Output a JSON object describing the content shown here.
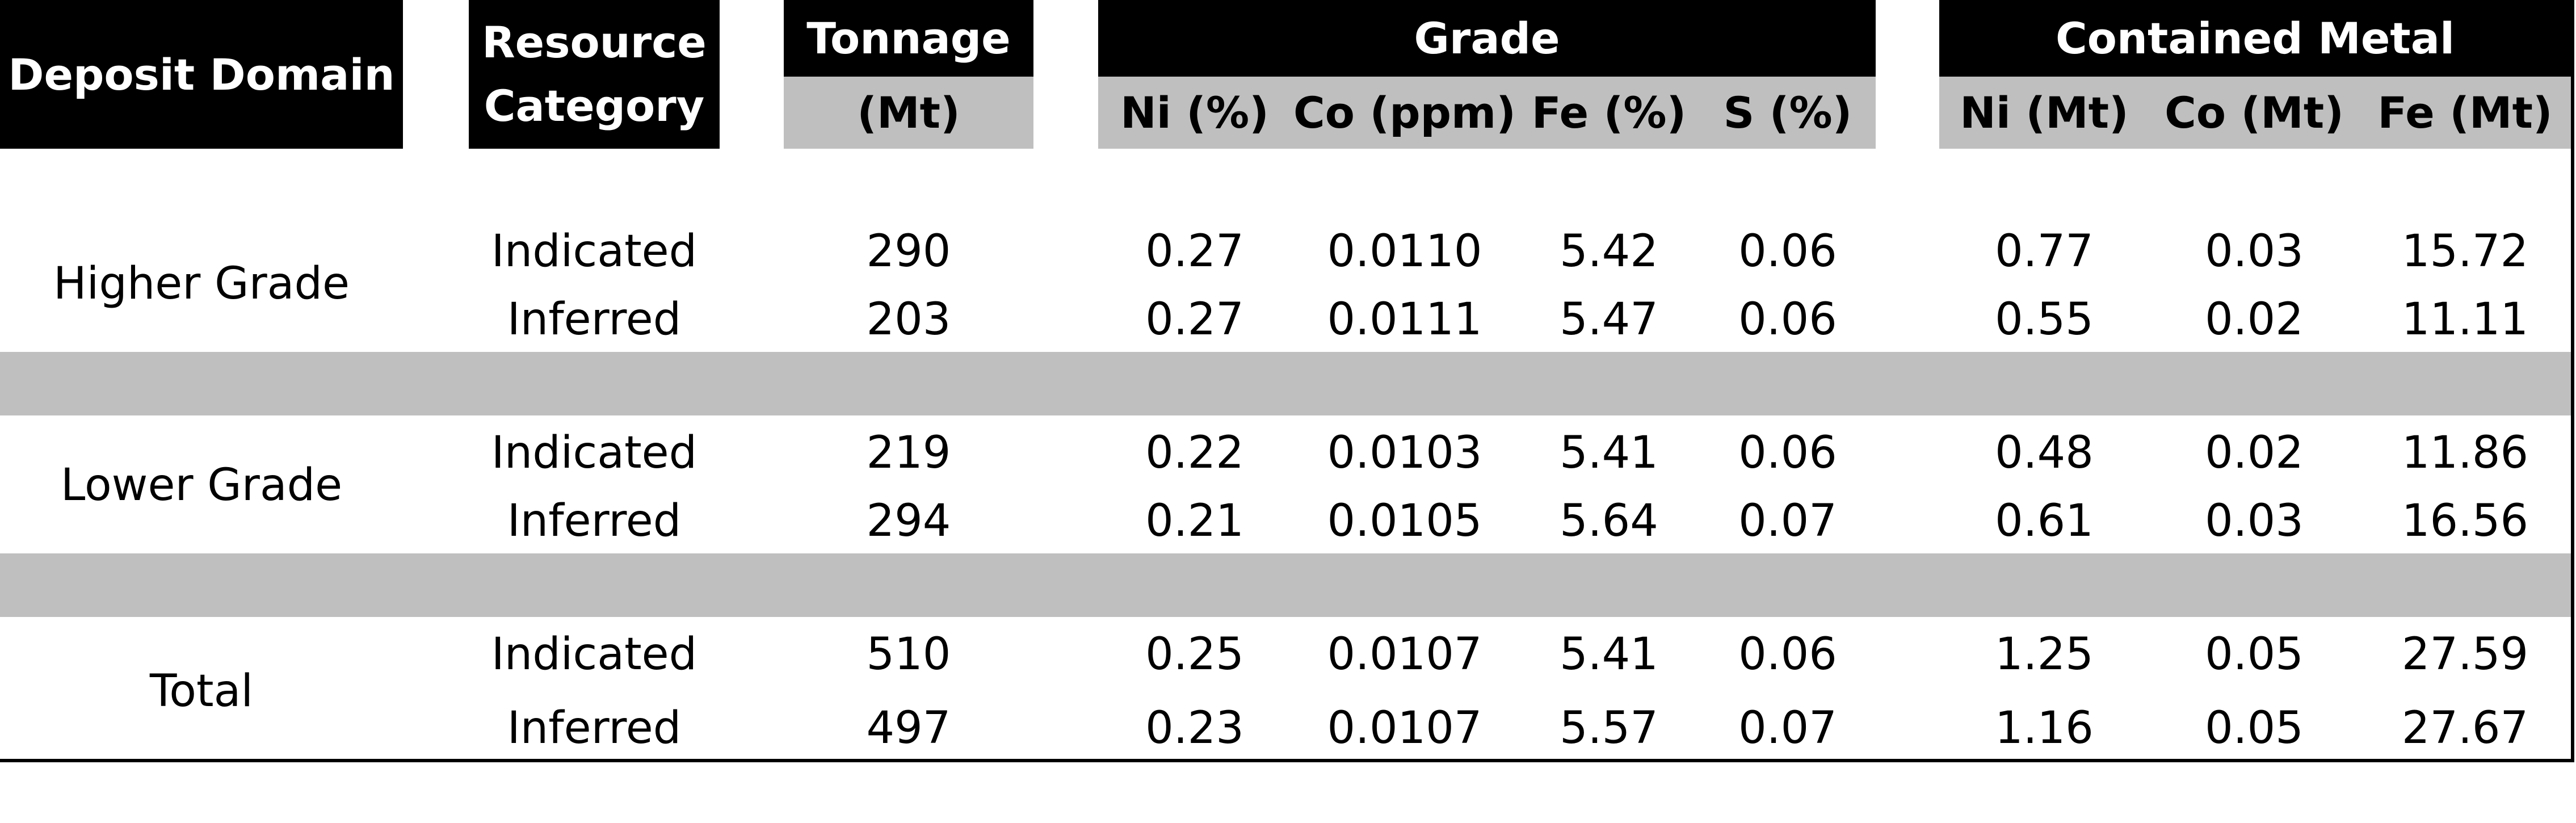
{
  "headers": {
    "deposit_domain": "Deposit Domain",
    "resource_category_line1": "Resource",
    "resource_category_line2": "Category",
    "tonnage": "Tonnage",
    "tonnage_unit": "(Mt)",
    "grade": "Grade",
    "contained_metal": "Contained Metal",
    "grade_cols": [
      "Ni (%)",
      "Co (ppm)",
      "Fe (%)",
      "S (%)"
    ],
    "metal_cols": [
      "Ni (Mt)",
      "Co (Mt)",
      "Fe (Mt)"
    ]
  },
  "groups": [
    {
      "domain": "Higher Grade",
      "rows": [
        {
          "category": "Indicated",
          "tonnage": "290",
          "ni": "0.27",
          "co": "0.0110",
          "fe": "5.42",
          "s": "0.06",
          "ni_mt": "0.77",
          "co_mt": "0.03",
          "fe_mt": "15.72"
        },
        {
          "category": "Inferred",
          "tonnage": "203",
          "ni": "0.27",
          "co": "0.0111",
          "fe": "5.47",
          "s": "0.06",
          "ni_mt": "0.55",
          "co_mt": "0.02",
          "fe_mt": "11.11"
        }
      ]
    },
    {
      "domain": "Lower Grade",
      "rows": [
        {
          "category": "Indicated",
          "tonnage": "219",
          "ni": "0.22",
          "co": "0.0103",
          "fe": "5.41",
          "s": "0.06",
          "ni_mt": "0.48",
          "co_mt": "0.02",
          "fe_mt": "11.86"
        },
        {
          "category": "Inferred",
          "tonnage": "294",
          "ni": "0.21",
          "co": "0.0105",
          "fe": "5.64",
          "s": "0.07",
          "ni_mt": "0.61",
          "co_mt": "0.03",
          "fe_mt": "16.56"
        }
      ]
    },
    {
      "domain": "Total",
      "rows": [
        {
          "category": "Indicated",
          "tonnage": "510",
          "ni": "0.25",
          "co": "0.0107",
          "fe": "5.41",
          "s": "0.06",
          "ni_mt": "1.25",
          "co_mt": "0.05",
          "fe_mt": "27.59"
        },
        {
          "category": "Inferred",
          "tonnage": "497",
          "ni": "0.23",
          "co": "0.0107",
          "fe": "5.57",
          "s": "0.07",
          "ni_mt": "1.16",
          "co_mt": "0.05",
          "fe_mt": "27.67"
        }
      ]
    }
  ],
  "colors": {
    "header_black": "#000000",
    "header_gray": "#bfbfbf",
    "separator_gray": "#bfbfbf"
  }
}
